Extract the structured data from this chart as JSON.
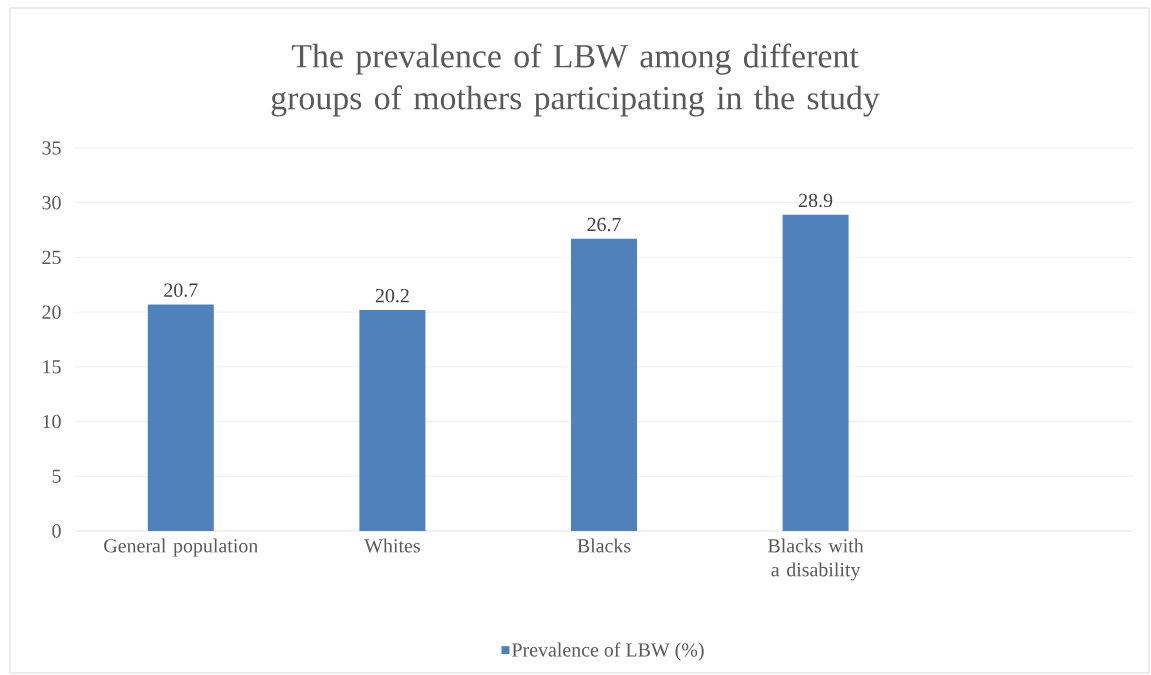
{
  "chart_data": {
    "type": "bar",
    "title": "The prevalence of LBW among different groups of mothers participating in the study",
    "categories": [
      "General population",
      "Whites",
      "Blacks",
      "Blacks with a disability",
      null
    ],
    "series": [
      {
        "name": "Prevalence of LBW (%)",
        "color": "#4f81bd",
        "values": [
          20.7,
          20.2,
          26.7,
          28.9,
          null
        ]
      }
    ],
    "ylim": [
      0,
      35
    ],
    "yticks": [
      0,
      5,
      10,
      15,
      20,
      25,
      30,
      35
    ],
    "grid": "y",
    "legend": "bottom",
    "data_labels": true
  }
}
